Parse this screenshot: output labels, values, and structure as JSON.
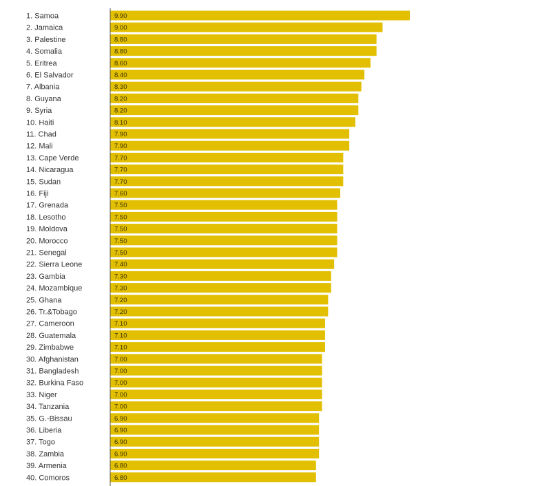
{
  "chart_data": {
    "type": "bar",
    "orientation": "horizontal",
    "title": "",
    "xlabel": "",
    "ylabel": "",
    "xlim": [
      0,
      10
    ],
    "grid": false,
    "legend": "none",
    "bar_color": "#e2bf00",
    "axis_color": "#555555",
    "categories": [
      "1. Samoa",
      "2. Jamaica",
      "3. Palestine",
      "4. Somalia",
      "5. Eritrea",
      "6. El Salvador",
      "7. Albania",
      "8. Guyana",
      "9. Syria",
      "10. Haiti",
      "11. Chad",
      "12. Mali",
      "13. Cape Verde",
      "14. Nicaragua",
      "15. Sudan",
      "16. Fiji",
      "17. Grenada",
      "18. Lesotho",
      "19. Moldova",
      "20. Morocco",
      "21. Senegal",
      "22. Sierra Leone",
      "23. Gambia",
      "24. Mozambique",
      "25. Ghana",
      "26. Tr.&Tobago",
      "27. Cameroon",
      "28. Guatemala",
      "29. Zimbabwe",
      "30. Afghanistan",
      "31. Bangladesh",
      "32. Burkina Faso",
      "33. Niger",
      "34. Tanzania",
      "35. G.-Bissau",
      "36. Liberia",
      "37. Togo",
      "38. Zambia",
      "39. Armenia",
      "40. Comoros"
    ],
    "values": [
      9.9,
      9.0,
      8.8,
      8.8,
      8.6,
      8.4,
      8.3,
      8.2,
      8.2,
      8.1,
      7.9,
      7.9,
      7.7,
      7.7,
      7.7,
      7.6,
      7.5,
      7.5,
      7.5,
      7.5,
      7.5,
      7.4,
      7.3,
      7.3,
      7.2,
      7.2,
      7.1,
      7.1,
      7.1,
      7.0,
      7.0,
      7.0,
      7.0,
      7.0,
      6.9,
      6.9,
      6.9,
      6.9,
      6.8,
      6.8
    ],
    "value_labels": [
      "9.90",
      "9.00",
      "8.80",
      "8.80",
      "8.60",
      "8.40",
      "8.30",
      "8.20",
      "8.20",
      "8.10",
      "7.90",
      "7.90",
      "7.70",
      "7.70",
      "7.70",
      "7.60",
      "7.50",
      "7.50",
      "7.50",
      "7.50",
      "7.50",
      "7.40",
      "7.30",
      "7.30",
      "7.20",
      "7.20",
      "7.10",
      "7.10",
      "7.10",
      "7.00",
      "7.00",
      "7.00",
      "7.00",
      "7.00",
      "6.90",
      "6.90",
      "6.90",
      "6.90",
      "6.80",
      "6.80"
    ]
  }
}
